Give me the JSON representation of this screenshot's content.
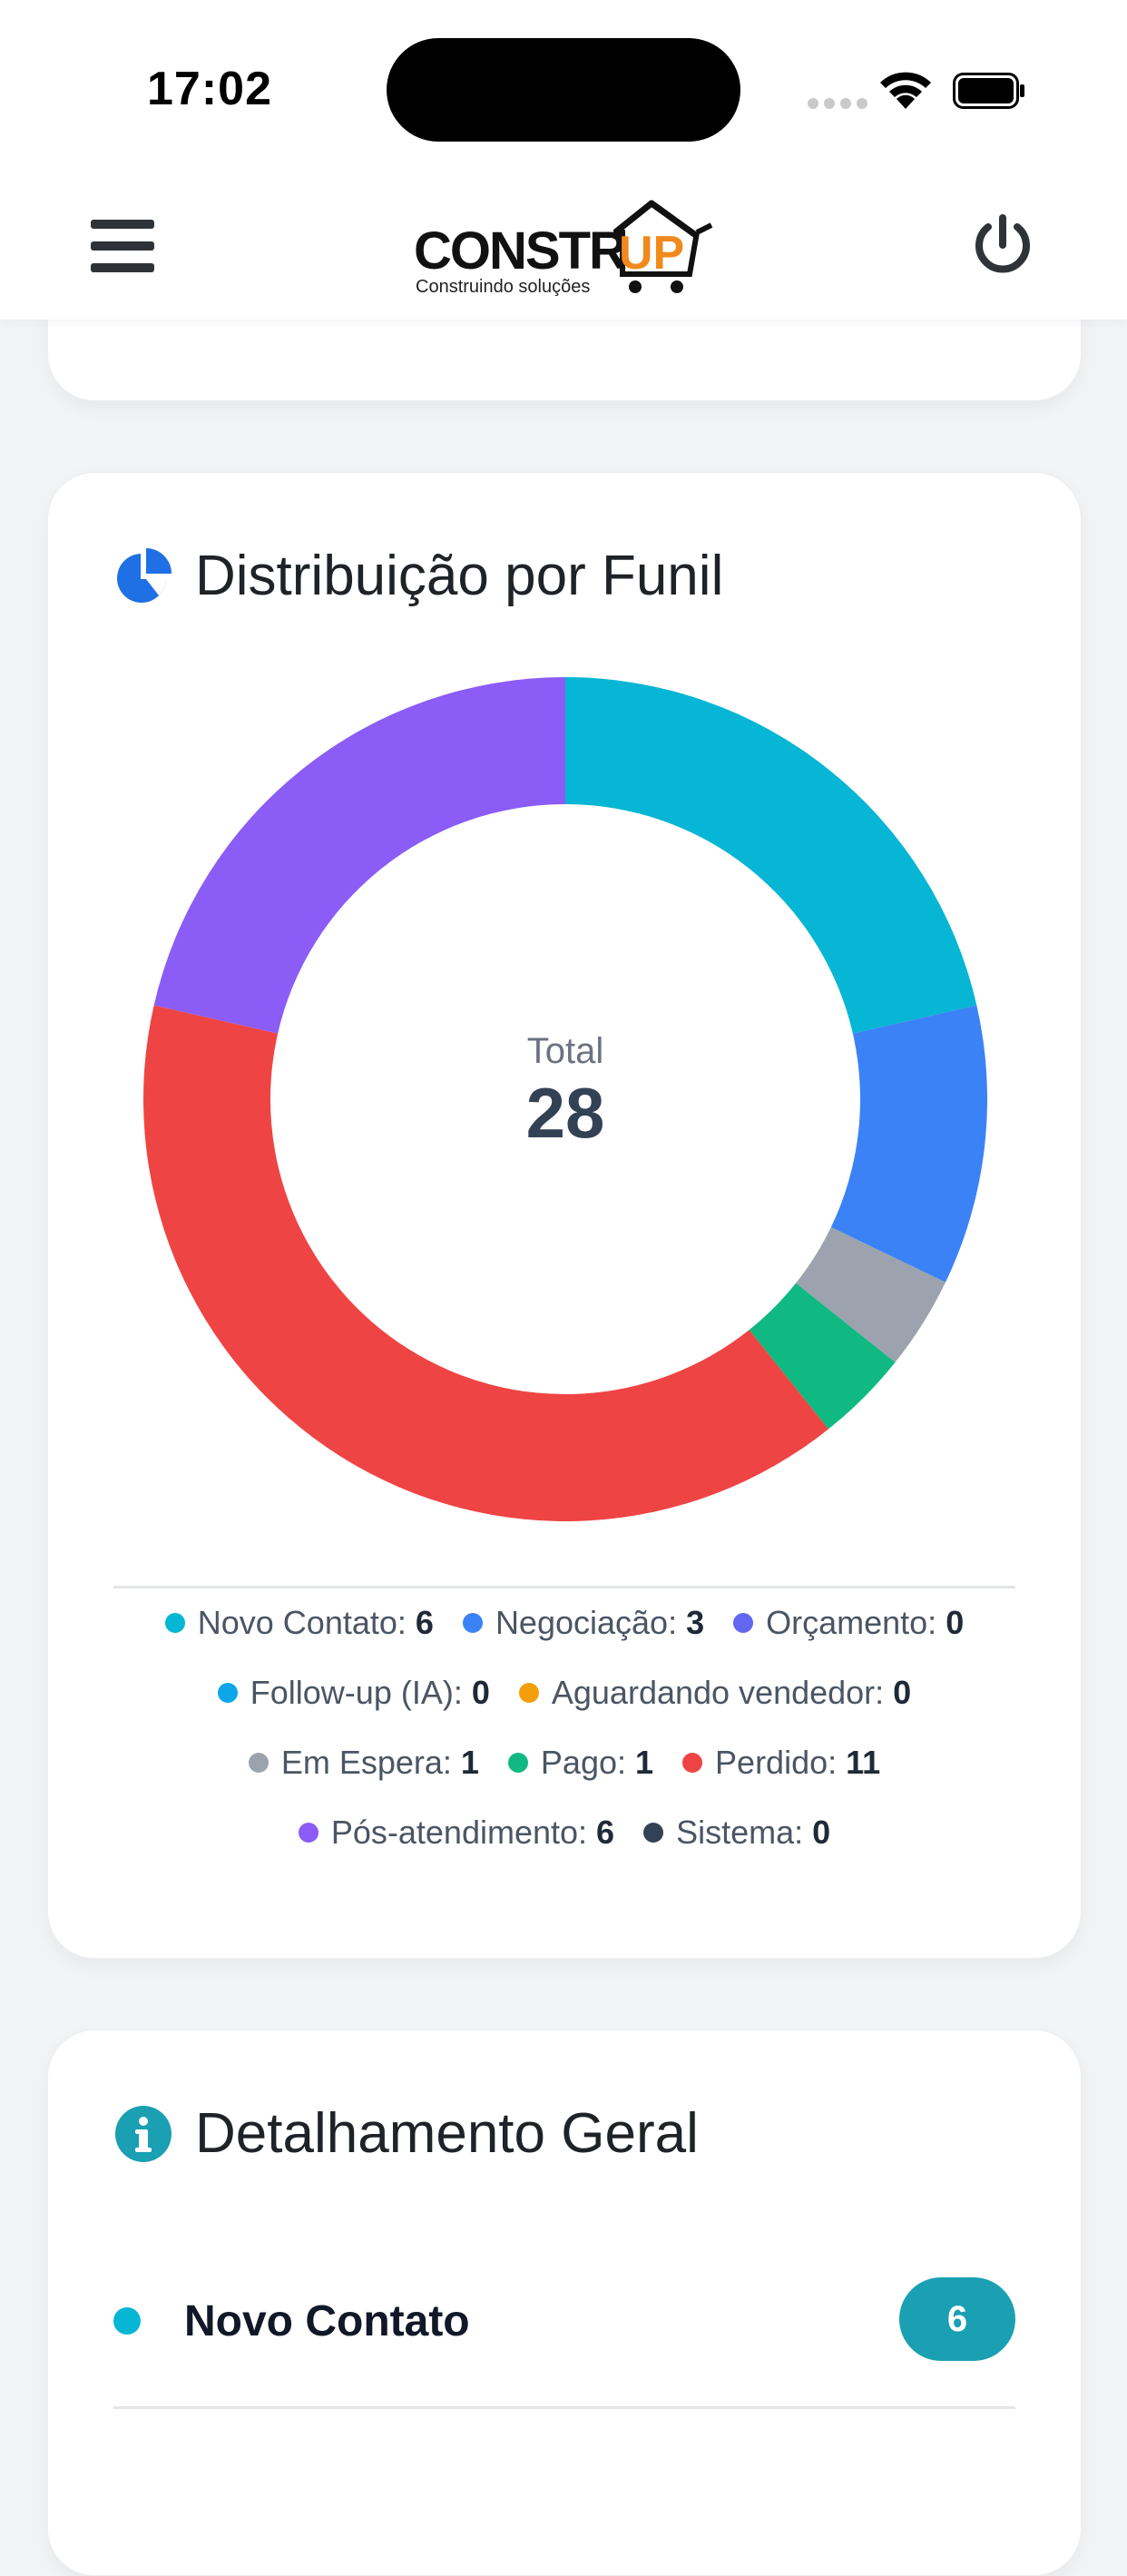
{
  "status_bar": {
    "time": "17:02"
  },
  "header": {
    "logo_text": "CONSTRUP",
    "logo_tagline": "Construindo soluções"
  },
  "funnel_card": {
    "title": "Distribuição por Funil",
    "total_label": "Total",
    "total_value": "28"
  },
  "legend": [
    {
      "label": "Novo Contato:",
      "value": "6",
      "color": "#06b6d4"
    },
    {
      "label": "Negociação:",
      "value": "3",
      "color": "#3b82f6"
    },
    {
      "label": "Orçamento:",
      "value": "0",
      "color": "#6366f1"
    },
    {
      "label": "Follow-up (IA):",
      "value": "0",
      "color": "#0ea5e9"
    },
    {
      "label": "Aguardando vendedor:",
      "value": "0",
      "color": "#f59e0b"
    },
    {
      "label": "Em Espera:",
      "value": "1",
      "color": "#9ca3af"
    },
    {
      "label": "Pago:",
      "value": "1",
      "color": "#10b981"
    },
    {
      "label": "Perdido:",
      "value": "11",
      "color": "#ef4444"
    },
    {
      "label": "Pós-atendimento:",
      "value": "6",
      "color": "#8b5cf6"
    },
    {
      "label": "Sistema:",
      "value": "0",
      "color": "#334155"
    }
  ],
  "chart_data": {
    "type": "pie",
    "title": "Distribuição por Funil",
    "categories": [
      "Novo Contato",
      "Negociação",
      "Orçamento",
      "Follow-up (IA)",
      "Aguardando vendedor",
      "Em Espera",
      "Pago",
      "Perdido",
      "Pós-atendimento",
      "Sistema"
    ],
    "values": [
      6,
      3,
      0,
      0,
      0,
      1,
      1,
      11,
      6,
      0
    ],
    "colors": [
      "#06b6d4",
      "#3b82f6",
      "#6366f1",
      "#0ea5e9",
      "#f59e0b",
      "#9ca3af",
      "#10b981",
      "#ef4444",
      "#8b5cf6",
      "#334155"
    ],
    "center_label": "Total",
    "center_value": 28
  },
  "detail_card": {
    "title": "Detalhamento Geral",
    "rows": [
      {
        "name": "Novo Contato",
        "count": "6"
      }
    ]
  }
}
